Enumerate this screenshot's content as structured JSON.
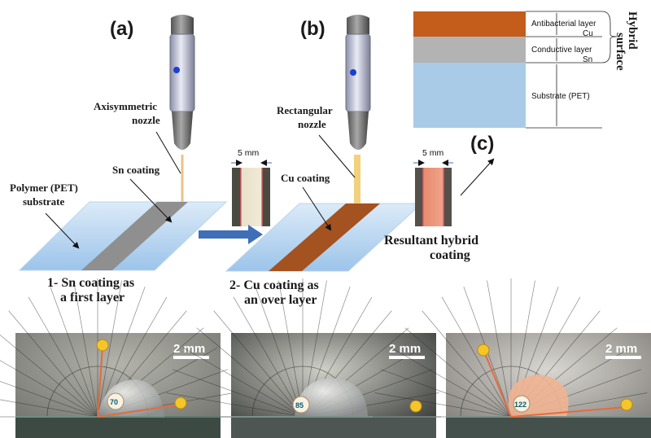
{
  "panel_tags": {
    "a": "(a)",
    "b": "(b)",
    "c": "(c)"
  },
  "labels": {
    "axisymmetric_nozzle": [
      "Axisymmetric",
      "nozzle"
    ],
    "rectangular_nozzle": [
      "Rectangular",
      "nozzle"
    ],
    "sn_coating": "Sn coating",
    "cu_coating": "Cu coating",
    "polymer_substrate": [
      "Polymer (PET)",
      "substrate"
    ],
    "step1": [
      "1- Sn coating as",
      "a first layer"
    ],
    "step2": [
      "2- Cu coating as",
      "an over layer"
    ],
    "resultant": [
      "Resultant hybrid",
      "coating"
    ],
    "width_a": "5 mm",
    "width_b": "5 mm"
  },
  "layer_diagram": {
    "antibacterial": "Antibacterial layer",
    "cu": "Cu",
    "conductive": "Conductive layer",
    "sn": "Sn",
    "substrate": "Substrate (PET)",
    "hybrid_line1": "Hybrid",
    "hybrid_line2": "surface"
  },
  "contact_angle": {
    "scale_bar": "2 mm",
    "angles": [
      "70",
      "85",
      "122"
    ]
  },
  "colors": {
    "sn": "#8f8f8f",
    "cu": "#a4521f",
    "pet": "#cfe5f8",
    "arrow": "#3f6fb8",
    "orange_layer": "#c45c1c",
    "pink_line": "#e15a6e",
    "pin": "#f5c52a"
  }
}
